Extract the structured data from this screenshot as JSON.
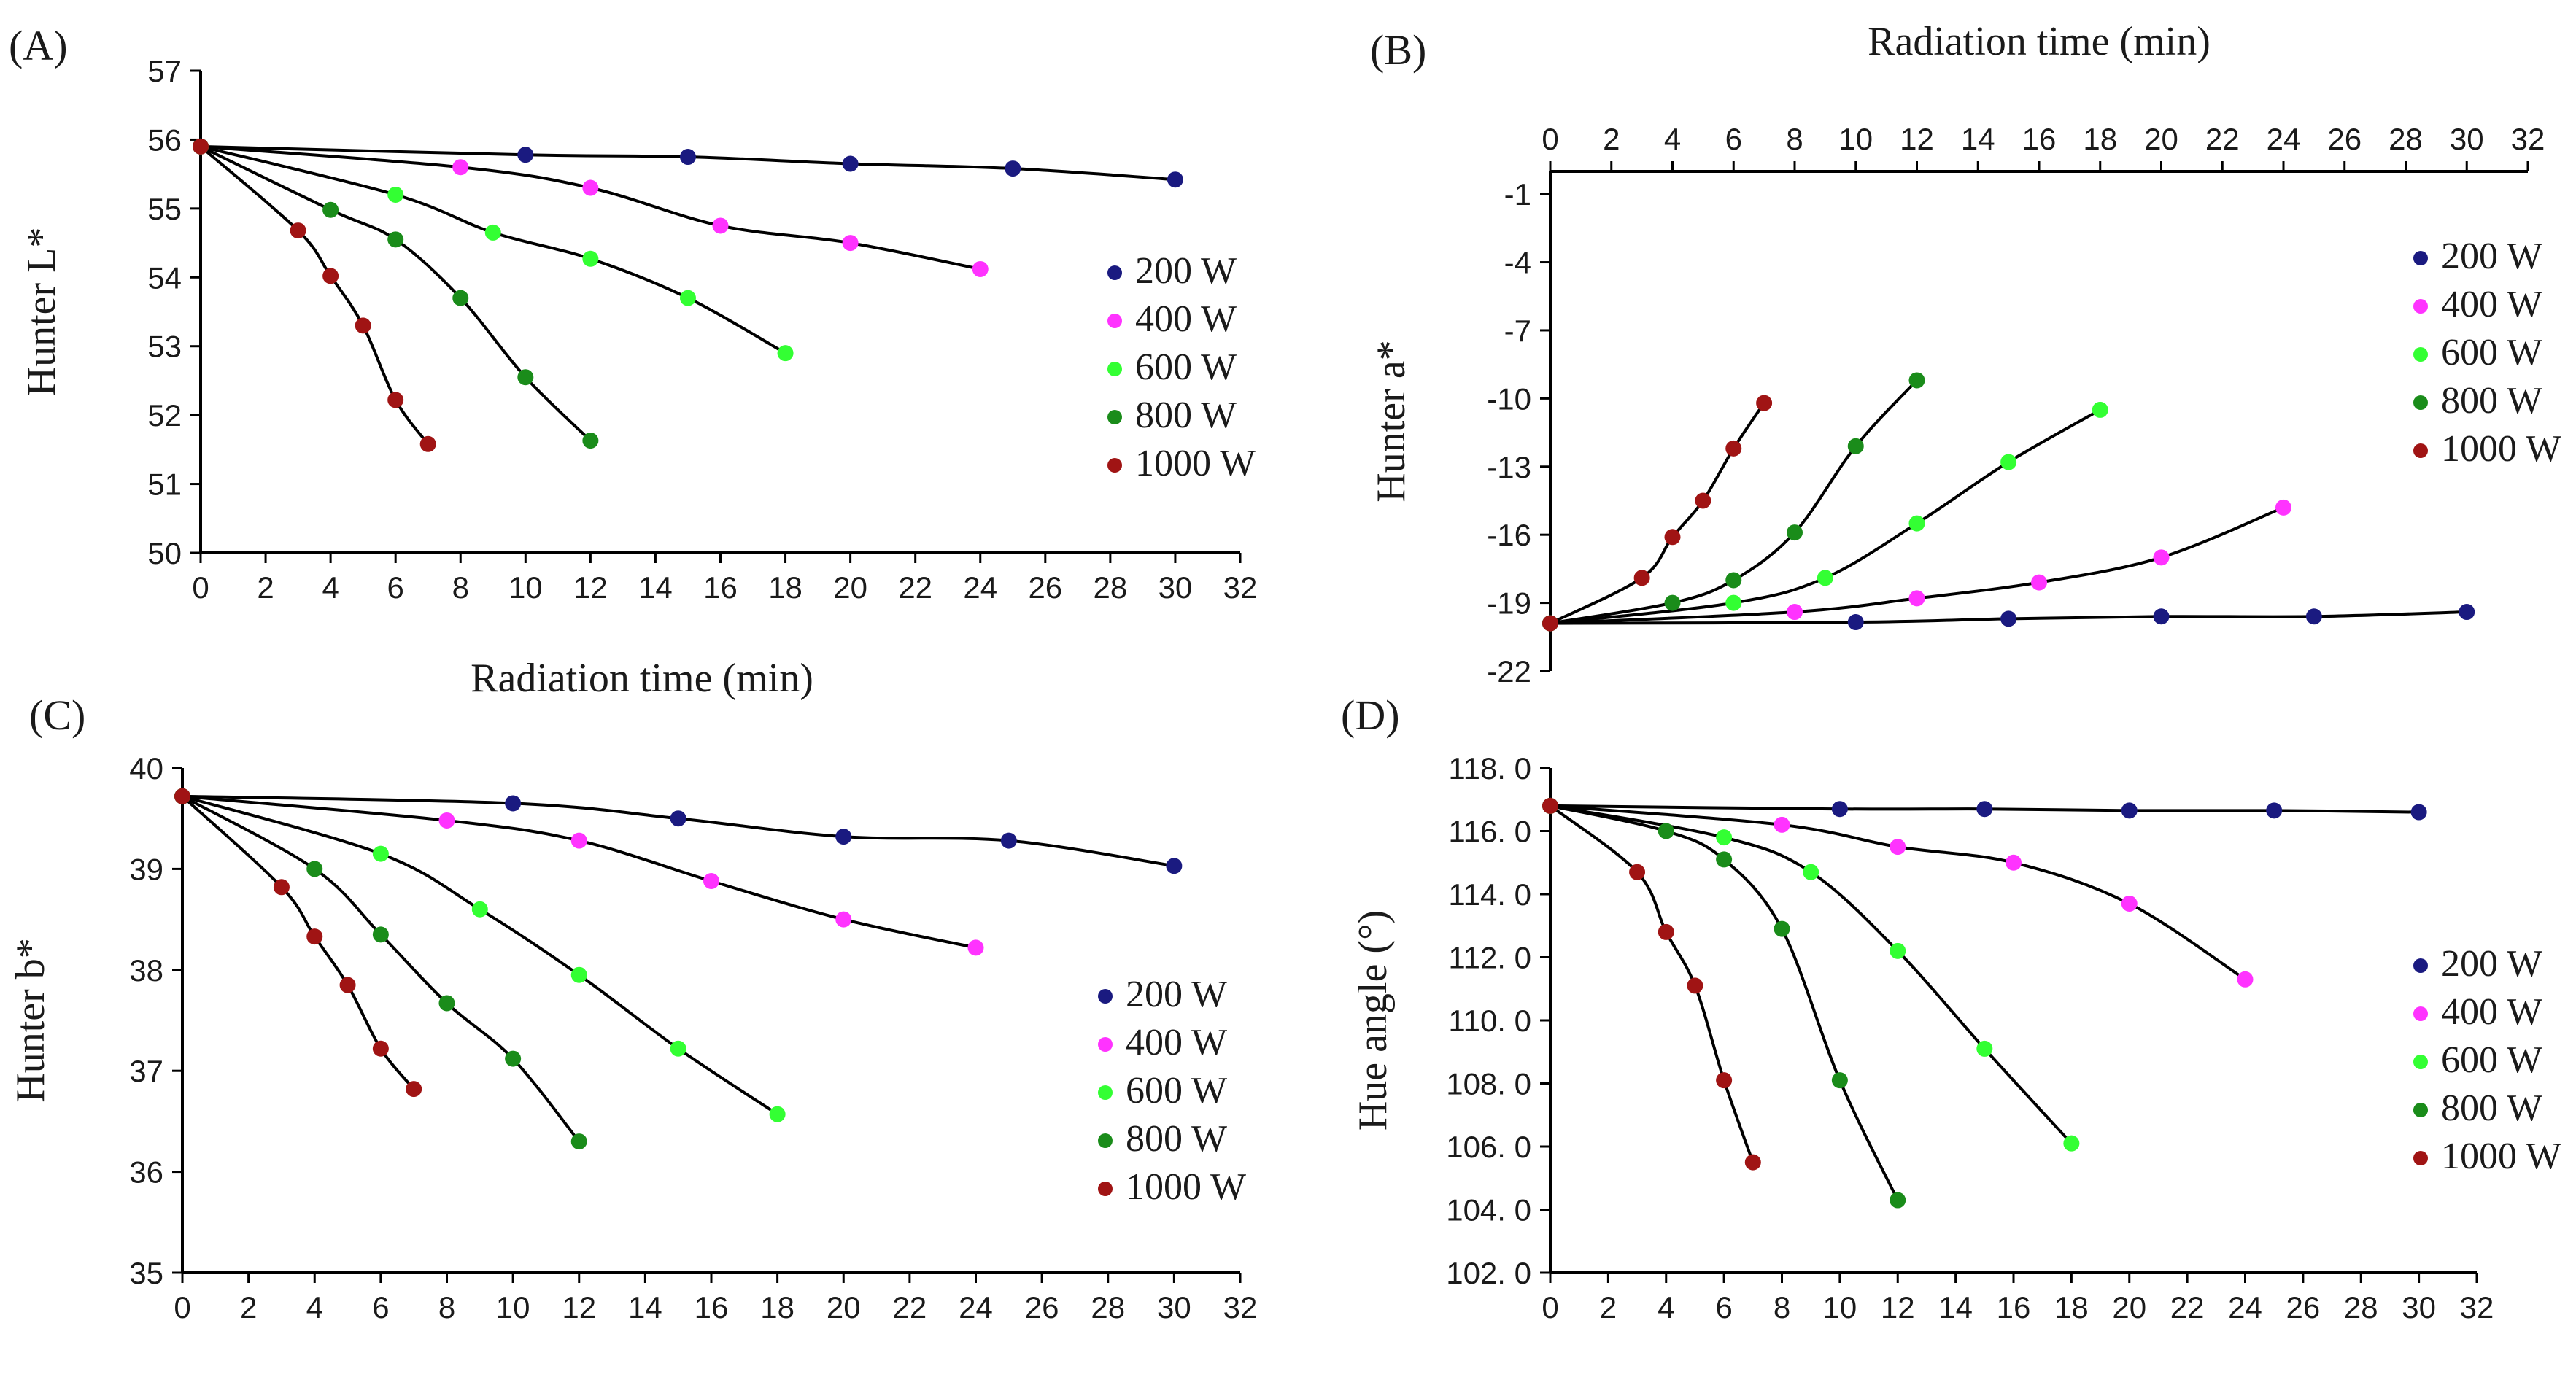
{
  "colors": {
    "200 W": "#1a1a80",
    "400 W": "#ff33ff",
    "600 W": "#33ff33",
    "800 W": "#1a8c1a",
    "1000 W": "#a01414",
    "fit_line": "#000000"
  },
  "chart_data": [
    {
      "panel": "(A)",
      "type": "scatter",
      "xlabel": "Radiation time (min)",
      "ylabel": "Hunter L*",
      "xlim": [
        0,
        32
      ],
      "ylim": [
        50,
        57
      ],
      "x_ticks": [
        0,
        2,
        4,
        6,
        8,
        10,
        12,
        14,
        16,
        18,
        20,
        22,
        24,
        26,
        28,
        30,
        32
      ],
      "y_ticks": [
        "50",
        "51",
        "52",
        "53",
        "54",
        "55",
        "56",
        "57"
      ],
      "legend": [
        "200 W",
        "400 W",
        "600 W",
        "800 W",
        "1000 W"
      ],
      "grid": false,
      "fit_lines": true,
      "series": [
        {
          "name": "200 W",
          "x": [
            0,
            10,
            15,
            20,
            25,
            30
          ],
          "y": [
            55.9,
            55.78,
            55.75,
            55.65,
            55.58,
            55.42
          ]
        },
        {
          "name": "400 W",
          "x": [
            0,
            8,
            12,
            16,
            20,
            24
          ],
          "y": [
            55.9,
            55.6,
            55.3,
            54.75,
            54.5,
            54.12
          ]
        },
        {
          "name": "600 W",
          "x": [
            0,
            6,
            9,
            12,
            15,
            18
          ],
          "y": [
            55.9,
            55.2,
            54.65,
            54.27,
            53.7,
            52.9
          ]
        },
        {
          "name": "800 W",
          "x": [
            0,
            4,
            6,
            8,
            10,
            12
          ],
          "y": [
            55.9,
            54.98,
            54.55,
            53.7,
            52.55,
            51.63
          ]
        },
        {
          "name": "1000 W",
          "x": [
            0,
            3,
            4,
            5,
            6,
            7
          ],
          "y": [
            55.9,
            54.68,
            54.02,
            53.3,
            52.22,
            51.58
          ]
        }
      ]
    },
    {
      "panel": "(B)",
      "type": "scatter",
      "xlabel": "Radiation time (min)",
      "ylabel": "Hunter a*",
      "xlim": [
        0,
        32
      ],
      "ylim": [
        -22,
        0
      ],
      "x_ticks": [
        0,
        2,
        4,
        6,
        8,
        10,
        12,
        14,
        16,
        18,
        20,
        22,
        24,
        26,
        28,
        30,
        32
      ],
      "y_ticks": [
        "-1",
        "-4",
        "-7",
        "-10",
        "-13",
        "-16",
        "-19",
        "-22"
      ],
      "legend": [
        "200 W",
        "400 W",
        "600 W",
        "800 W",
        "1000 W"
      ],
      "grid": false,
      "fit_lines": true,
      "series": [
        {
          "name": "200 W",
          "x": [
            0,
            10,
            15,
            20,
            25,
            30
          ],
          "y": [
            -19.9,
            -19.85,
            -19.7,
            -19.6,
            -19.6,
            -19.4
          ]
        },
        {
          "name": "400 W",
          "x": [
            0,
            8,
            12,
            16,
            20,
            24
          ],
          "y": [
            -19.9,
            -19.4,
            -18.8,
            -18.1,
            -17.0,
            -14.8
          ]
        },
        {
          "name": "600 W",
          "x": [
            0,
            6,
            9,
            12,
            15,
            18
          ],
          "y": [
            -19.9,
            -19.0,
            -17.9,
            -15.5,
            -12.8,
            -10.5
          ]
        },
        {
          "name": "800 W",
          "x": [
            0,
            4,
            6,
            8,
            10,
            12
          ],
          "y": [
            -19.9,
            -19.0,
            -18.0,
            -15.9,
            -12.1,
            -9.2
          ]
        },
        {
          "name": "1000 W",
          "x": [
            0,
            3,
            4,
            5,
            6,
            7
          ],
          "y": [
            -19.9,
            -17.9,
            -16.1,
            -14.5,
            -12.2,
            -10.2
          ]
        }
      ]
    },
    {
      "panel": "(C)",
      "type": "scatter",
      "xlabel": "",
      "ylabel": "Hunter b*",
      "xlim": [
        0,
        32
      ],
      "ylim": [
        35,
        40
      ],
      "x_ticks": [
        0,
        2,
        4,
        6,
        8,
        10,
        12,
        14,
        16,
        18,
        20,
        22,
        24,
        26,
        28,
        30,
        32
      ],
      "y_ticks": [
        "35",
        "36",
        "37",
        "38",
        "39",
        "40"
      ],
      "legend": [
        "200 W",
        "400 W",
        "600 W",
        "800 W",
        "1000 W"
      ],
      "grid": false,
      "fit_lines": true,
      "series": [
        {
          "name": "200 W",
          "x": [
            0,
            10,
            15,
            20,
            25,
            30
          ],
          "y": [
            39.72,
            39.65,
            39.5,
            39.32,
            39.28,
            39.03
          ]
        },
        {
          "name": "400 W",
          "x": [
            0,
            8,
            12,
            16,
            20,
            24
          ],
          "y": [
            39.72,
            39.48,
            39.28,
            38.88,
            38.5,
            38.22
          ]
        },
        {
          "name": "600 W",
          "x": [
            0,
            6,
            9,
            12,
            15,
            18
          ],
          "y": [
            39.72,
            39.15,
            38.6,
            37.95,
            37.22,
            36.57
          ]
        },
        {
          "name": "800 W",
          "x": [
            0,
            4,
            6,
            8,
            10,
            12
          ],
          "y": [
            39.72,
            39.0,
            38.35,
            37.67,
            37.12,
            36.3
          ]
        },
        {
          "name": "1000 W",
          "x": [
            0,
            3,
            4,
            5,
            6,
            7
          ],
          "y": [
            39.72,
            38.82,
            38.33,
            37.85,
            37.22,
            36.82
          ]
        }
      ]
    },
    {
      "panel": "(D)",
      "type": "scatter",
      "xlabel": "",
      "ylabel": "Hue angle (°)",
      "xlim": [
        0,
        32
      ],
      "ylim": [
        102,
        118
      ],
      "x_ticks": [
        0,
        2,
        4,
        6,
        8,
        10,
        12,
        14,
        16,
        18,
        20,
        22,
        24,
        26,
        28,
        30,
        32
      ],
      "y_ticks": [
        "102. 0",
        "104. 0",
        "106. 0",
        "108. 0",
        "110. 0",
        "112. 0",
        "114. 0",
        "116. 0",
        "118. 0"
      ],
      "legend": [
        "200 W",
        "400 W",
        "600 W",
        "800 W",
        "1000 W"
      ],
      "grid": false,
      "fit_lines": true,
      "series": [
        {
          "name": "200 W",
          "x": [
            0,
            10,
            15,
            20,
            25,
            30
          ],
          "y": [
            116.8,
            116.7,
            116.7,
            116.65,
            116.65,
            116.6
          ]
        },
        {
          "name": "400 W",
          "x": [
            0,
            8,
            12,
            16,
            20,
            24
          ],
          "y": [
            116.8,
            116.2,
            115.5,
            115.0,
            113.7,
            111.3
          ]
        },
        {
          "name": "600 W",
          "x": [
            0,
            6,
            9,
            12,
            15,
            18
          ],
          "y": [
            116.8,
            115.8,
            114.7,
            112.2,
            109.1,
            106.1
          ]
        },
        {
          "name": "800 W",
          "x": [
            0,
            4,
            6,
            8,
            10,
            12
          ],
          "y": [
            116.8,
            116.0,
            115.1,
            112.9,
            108.1,
            104.3
          ]
        },
        {
          "name": "1000 W",
          "x": [
            0,
            3,
            4,
            5,
            6,
            7
          ],
          "y": [
            116.8,
            114.7,
            112.8,
            111.1,
            108.1,
            105.5
          ]
        }
      ]
    }
  ]
}
